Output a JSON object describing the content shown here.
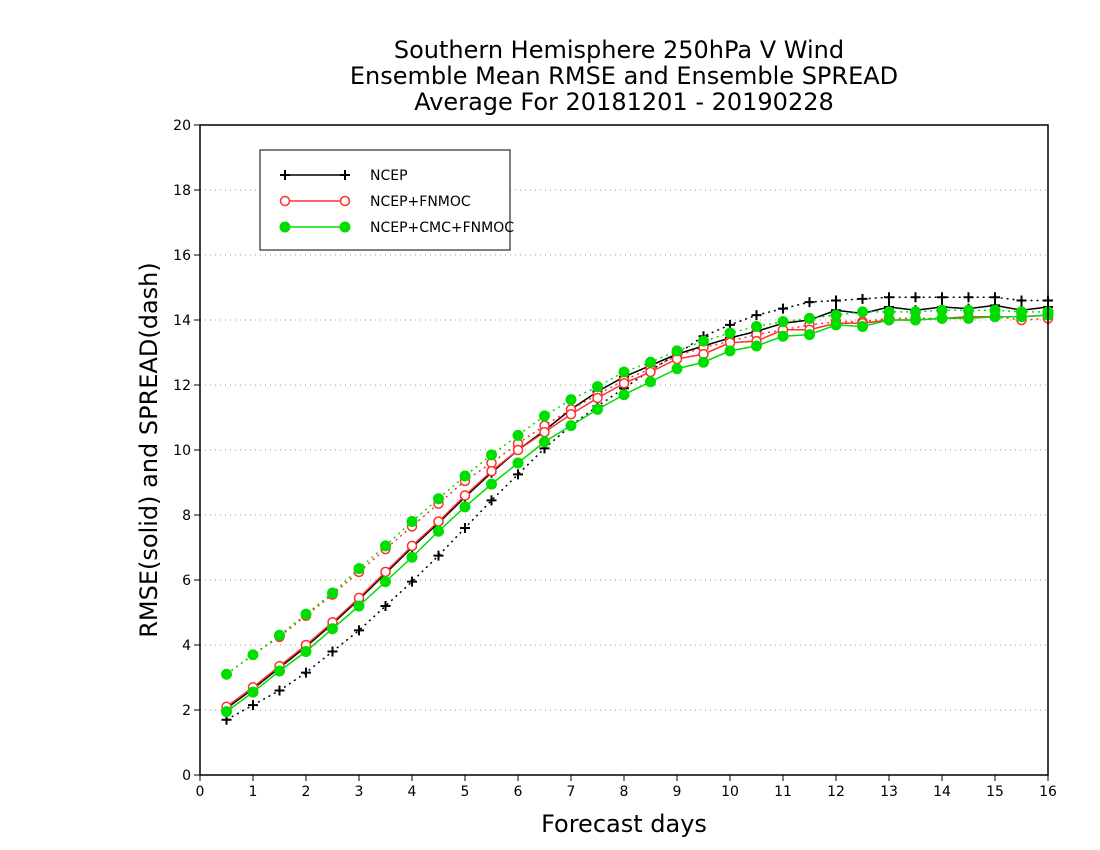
{
  "chart_data": {
    "type": "line",
    "title_lines": [
      "Southern Hemisphere 250hPa V Wind",
      "Ensemble Mean RMSE and Ensemble SPREAD",
      "Average For 20181201 - 20190228"
    ],
    "xlabel": "Forecast days",
    "ylabel": "RMSE(solid) and SPREAD(dash)",
    "xlim": [
      0,
      16
    ],
    "ylim": [
      0,
      20
    ],
    "xticks": [
      "0",
      "1",
      "2",
      "3",
      "4",
      "5",
      "6",
      "7",
      "8",
      "9",
      "10",
      "11",
      "12",
      "13",
      "14",
      "15",
      "16"
    ],
    "yticks": [
      "0",
      "2",
      "4",
      "6",
      "8",
      "10",
      "12",
      "14",
      "16",
      "18",
      "20"
    ],
    "grid": true,
    "legend_position": "top-left",
    "x": [
      0.5,
      1,
      1.5,
      2,
      2.5,
      3,
      3.5,
      4,
      4.5,
      5,
      5.5,
      6,
      6.5,
      7,
      7.5,
      8,
      8.5,
      9,
      9.5,
      10,
      10.5,
      11,
      11.5,
      12,
      12.5,
      13,
      13.5,
      14,
      14.5,
      15,
      15.5,
      16
    ],
    "series": [
      {
        "name": "NCEP",
        "color": "#000000",
        "marker": "plus",
        "rmse": [
          2.05,
          2.65,
          3.3,
          3.95,
          4.65,
          5.4,
          6.2,
          7.0,
          7.75,
          8.55,
          9.3,
          10.0,
          10.6,
          11.25,
          11.8,
          12.25,
          12.6,
          12.95,
          13.2,
          13.45,
          13.65,
          13.9,
          14.0,
          14.3,
          14.2,
          14.4,
          14.3,
          14.4,
          14.35,
          14.45,
          14.3,
          14.4
        ],
        "spread": [
          1.7,
          2.15,
          2.6,
          3.15,
          3.8,
          4.45,
          5.2,
          5.95,
          6.75,
          7.6,
          8.45,
          9.25,
          10.05,
          10.75,
          11.35,
          11.9,
          12.45,
          12.95,
          13.5,
          13.85,
          14.15,
          14.35,
          14.55,
          14.6,
          14.65,
          14.7,
          14.7,
          14.7,
          14.7,
          14.7,
          14.6,
          14.6
        ]
      },
      {
        "name": "NCEP+FNMOC",
        "color": "#ff3030",
        "marker": "open-circle",
        "rmse": [
          2.1,
          2.7,
          3.35,
          4.0,
          4.7,
          5.45,
          6.25,
          7.05,
          7.8,
          8.6,
          9.35,
          10.0,
          10.55,
          11.1,
          11.6,
          12.05,
          12.4,
          12.8,
          12.95,
          13.3,
          13.35,
          13.7,
          13.7,
          13.9,
          13.9,
          14.0,
          14.0,
          14.05,
          14.1,
          14.1,
          14.1,
          14.15
        ],
        "spread": [
          3.1,
          3.7,
          4.25,
          4.9,
          5.55,
          6.25,
          6.95,
          7.65,
          8.35,
          9.05,
          9.6,
          10.2,
          10.75,
          11.25,
          11.7,
          12.15,
          12.5,
          12.9,
          13.15,
          13.35,
          13.55,
          13.7,
          13.85,
          13.95,
          13.95,
          14.05,
          14.05,
          14.05,
          14.05,
          14.1,
          14.0,
          14.05
        ]
      },
      {
        "name": "NCEP+CMC+FNMOC",
        "color": "#00dd00",
        "marker": "filled-circle",
        "rmse": [
          1.95,
          2.55,
          3.2,
          3.8,
          4.5,
          5.2,
          5.95,
          6.7,
          7.5,
          8.25,
          8.95,
          9.6,
          10.25,
          10.75,
          11.25,
          11.7,
          12.1,
          12.5,
          12.7,
          13.05,
          13.2,
          13.5,
          13.55,
          13.85,
          13.8,
          14.0,
          14.0,
          14.05,
          14.05,
          14.1,
          14.1,
          14.15
        ],
        "spread": [
          3.1,
          3.7,
          4.3,
          4.95,
          5.6,
          6.35,
          7.05,
          7.8,
          8.5,
          9.2,
          9.85,
          10.45,
          11.05,
          11.55,
          11.95,
          12.4,
          12.7,
          13.05,
          13.35,
          13.6,
          13.8,
          13.95,
          14.05,
          14.15,
          14.25,
          14.25,
          14.25,
          14.3,
          14.3,
          14.3,
          14.25,
          14.25
        ]
      }
    ]
  }
}
